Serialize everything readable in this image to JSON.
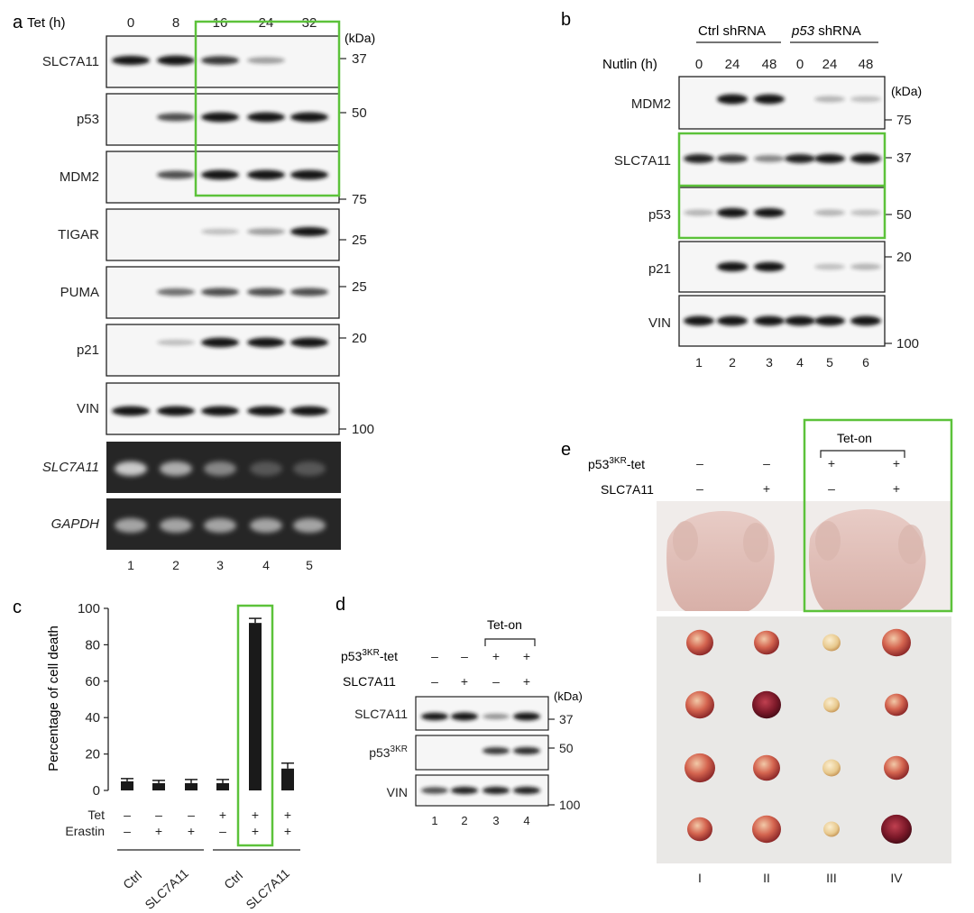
{
  "colors": {
    "highlight": "#5cc23a",
    "band": "#151515",
    "gel_bg": "#2a2a2a",
    "bar": "#1a1a1a"
  },
  "panel_a": {
    "letter": "a",
    "tet_label": "Tet (h)",
    "timepoints": [
      "0",
      "8",
      "16",
      "24",
      "32"
    ],
    "kda_label": "(kDa)",
    "blots": [
      {
        "label": "SLC7A11",
        "intensities": [
          0.85,
          0.95,
          0.7,
          0.25,
          0
        ],
        "marker": "37"
      },
      {
        "label": "p53",
        "intensities": [
          0,
          0.6,
          0.95,
          0.95,
          0.95
        ],
        "marker": "50"
      },
      {
        "label": "MDM2",
        "intensities": [
          0,
          0.6,
          0.95,
          0.95,
          0.95
        ],
        "marker": "75"
      },
      {
        "label": "TIGAR",
        "intensities": [
          0,
          0,
          0.1,
          0.25,
          0.85
        ],
        "marker": "25"
      },
      {
        "label": "PUMA",
        "intensities": [
          0,
          0.45,
          0.6,
          0.6,
          0.6
        ],
        "marker": "25"
      },
      {
        "label": "p21",
        "intensities": [
          0,
          0.1,
          0.95,
          0.95,
          0.95
        ],
        "marker": "20"
      },
      {
        "label": "VIN",
        "intensities": [
          0.95,
          0.95,
          0.95,
          0.95,
          0.95
        ],
        "marker": "100"
      }
    ],
    "gels": [
      {
        "label": "SLC7A11",
        "intensities": [
          0.85,
          0.7,
          0.5,
          0.25,
          0.25
        ]
      },
      {
        "label": "GAPDH",
        "intensities": [
          0.65,
          0.65,
          0.65,
          0.65,
          0.65
        ]
      }
    ],
    "lanes": [
      "1",
      "2",
      "3",
      "4",
      "5"
    ]
  },
  "panel_b": {
    "letter": "b",
    "group_ctrl": "Ctrl shRNA",
    "group_p53_italic": "p53",
    "group_p53_rest": " shRNA",
    "nutlin_label": "Nutlin (h)",
    "timepoints": [
      "0",
      "24",
      "48",
      "0",
      "24",
      "48"
    ],
    "kda_label": "(kDa)",
    "blots": [
      {
        "label": "MDM2",
        "intensities": [
          0,
          1,
          0.95,
          0,
          0.15,
          0.1
        ],
        "marker": "75"
      },
      {
        "label": "SLC7A11",
        "intensities": [
          0.8,
          0.7,
          0.35,
          0.8,
          0.85,
          0.95
        ],
        "marker": "37"
      },
      {
        "label": "p53",
        "intensities": [
          0.15,
          0.9,
          0.85,
          0,
          0.15,
          0.1
        ],
        "marker": "50"
      },
      {
        "label": "p21",
        "intensities": [
          0,
          0.9,
          0.9,
          0,
          0.1,
          0.15
        ],
        "marker": "20"
      },
      {
        "label": "VIN",
        "intensities": [
          0.95,
          0.95,
          0.95,
          0.95,
          0.95,
          0.95
        ],
        "marker": "100"
      }
    ],
    "lanes": [
      "1",
      "2",
      "3",
      "4",
      "5",
      "6"
    ]
  },
  "panel_c": {
    "letter": "c",
    "chart_data": {
      "type": "bar",
      "ylabel": "Percentage of cell death",
      "ylim": [
        0,
        100
      ],
      "yticks": [
        "0",
        "20",
        "40",
        "60",
        "80",
        "100"
      ],
      "values": [
        5,
        4,
        4,
        4,
        92,
        12
      ],
      "errors": [
        1.5,
        1.5,
        2,
        2,
        2.5,
        3
      ],
      "tet_label": "Tet",
      "erastin_label": "Erastin",
      "tet": [
        "–",
        "–",
        "–",
        "+",
        "+",
        "+"
      ],
      "erastin": [
        "–",
        "+",
        "+",
        "–",
        "+",
        "+"
      ],
      "group_labels": [
        "Ctrl",
        "SLC7A11",
        "Ctrl",
        "SLC7A11"
      ]
    }
  },
  "panel_d": {
    "letter": "d",
    "teton": "Tet-on",
    "row1_label": "p53",
    "row1_sup": "3KR",
    "row1_suffix": "-tet",
    "row1": [
      "–",
      "–",
      "+",
      "+"
    ],
    "row2_label": "SLC7A11",
    "row2": [
      "–",
      "+",
      "–",
      "+"
    ],
    "kda_label": "(kDa)",
    "blots": [
      {
        "label": "SLC7A11",
        "intensities": [
          0.85,
          1,
          0.3,
          0.95
        ],
        "marker": "37"
      },
      {
        "label": "p53",
        "sup": "3KR",
        "intensities": [
          0,
          0,
          0.7,
          0.75
        ],
        "marker": "50"
      },
      {
        "label": "VIN",
        "intensities": [
          0.6,
          0.8,
          0.8,
          0.8
        ],
        "marker": "100"
      }
    ],
    "lanes": [
      "1",
      "2",
      "3",
      "4"
    ]
  },
  "panel_e": {
    "letter": "e",
    "teton": "Tet-on",
    "row1_label": "p53",
    "row1_sup": "3KR",
    "row1_suffix": "-tet",
    "row1": [
      "–",
      "–",
      "+",
      "+"
    ],
    "row2_label": "SLC7A11",
    "row2": [
      "–",
      "+",
      "–",
      "+"
    ],
    "groups": [
      "I",
      "II",
      "III",
      "IV"
    ],
    "tumor_sizes": [
      [
        15,
        16,
        17,
        14
      ],
      [
        14,
        16,
        15,
        16
      ],
      [
        10,
        9,
        10,
        9
      ],
      [
        16,
        13,
        14,
        17
      ]
    ]
  }
}
